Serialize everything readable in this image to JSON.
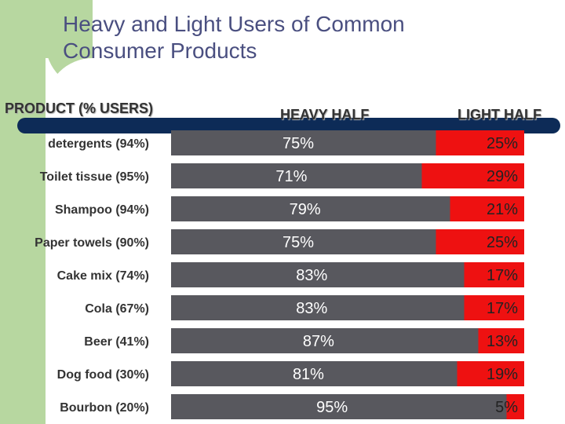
{
  "title_lines": [
    "Heavy and Light Users of Common",
    "Consumer Products"
  ],
  "headers": {
    "product": "PRODUCT (% USERS)",
    "heavy": "HEAVY HALF",
    "light": "LIGHT HALF"
  },
  "colors": {
    "heavy": "#58585e",
    "light": "#ee1111",
    "title": "#4a4f80",
    "accent_green": "#b7d7a0",
    "navy": "#0d2b57"
  },
  "chart_data": {
    "type": "bar",
    "stacked": true,
    "orientation": "horizontal",
    "categories": [
      "detergents (94%)",
      "Toilet tissue (95%)",
      "Shampoo (94%)",
      "Paper towels (90%)",
      "Cake mix (74%)",
      "Cola (67%)",
      "Beer (41%)",
      "Dog food (30%)",
      "Bourbon (20%)"
    ],
    "series": [
      {
        "name": "HEAVY HALF",
        "values": [
          75,
          71,
          79,
          75,
          83,
          83,
          87,
          81,
          95
        ],
        "labels": [
          "75%",
          "71%",
          "79%",
          "75%",
          "83%",
          "83%",
          "87%",
          "81%",
          "95%"
        ]
      },
      {
        "name": "LIGHT HALF",
        "values": [
          25,
          29,
          21,
          25,
          17,
          17,
          13,
          19,
          5
        ],
        "labels": [
          "25%",
          "29%",
          "21%",
          "25%",
          "17%",
          "17%",
          "13%",
          "19%",
          "5%"
        ]
      }
    ],
    "xlim": [
      0,
      100
    ]
  }
}
